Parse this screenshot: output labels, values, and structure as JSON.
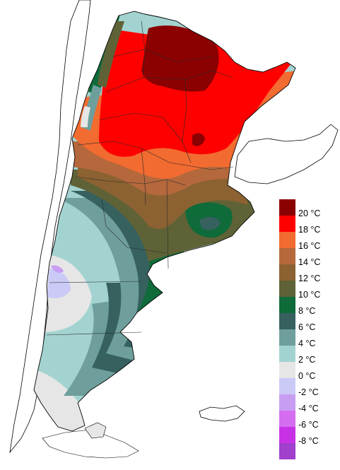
{
  "colors": {
    "neighbor_land": "#ffffff",
    "coast_line": "#000000",
    "boundary_line": "#2a2a2a"
  },
  "legend": {
    "items": [
      {
        "label": "20 °C",
        "color": "#8b0000"
      },
      {
        "label": "18 °C",
        "color": "#ff0000"
      },
      {
        "label": "16 °C",
        "color": "#f26b30"
      },
      {
        "label": "14 °C",
        "color": "#b5683c"
      },
      {
        "label": "12 °C",
        "color": "#8c6232"
      },
      {
        "label": "10 °C",
        "color": "#5f6236"
      },
      {
        "label": "8 °C",
        "color": "#0f6b3a"
      },
      {
        "label": "6 °C",
        "color": "#36615e"
      },
      {
        "label": "4 °C",
        "color": "#6e9f9c"
      },
      {
        "label": "2 °C",
        "color": "#a3d3d0"
      },
      {
        "label": "0 °C",
        "color": "#e6e6e6"
      },
      {
        "label": "-2 °C",
        "color": "#cbcaf7"
      },
      {
        "label": "-4 °C",
        "color": "#c89ef2"
      },
      {
        "label": "-6 °C",
        "color": "#d56df0"
      },
      {
        "label": "-8 °C",
        "color": "#c832e6"
      },
      {
        "label": "",
        "color": "#a040cc"
      }
    ]
  }
}
